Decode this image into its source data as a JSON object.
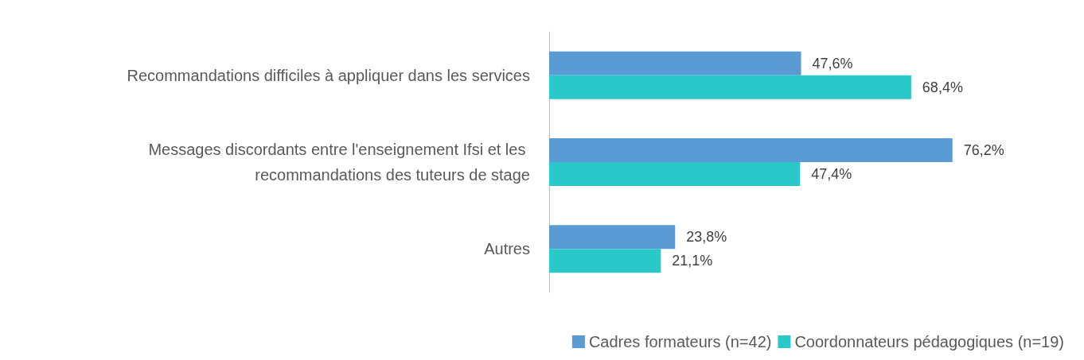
{
  "chart_data": {
    "type": "bar",
    "orientation": "horizontal",
    "categories": [
      "Recommandations difficiles à appliquer dans les services",
      "Messages discordants entre l'enseignement Ifsi et les recommandations des tuteurs de stage",
      "Autres"
    ],
    "series": [
      {
        "name": "Cadres formateurs (n=42)",
        "color": "#5b9bd5",
        "values": [
          47.6,
          76.2,
          23.8
        ],
        "value_labels": [
          "47,6%",
          "76,2%",
          "23,8%"
        ]
      },
      {
        "name": "Coordonnateurs pédagogiques (n=19)",
        "color": "#2ac8c8",
        "values": [
          68.4,
          47.4,
          21.1
        ],
        "value_labels": [
          "68,4%",
          "47,4%",
          "21,1%"
        ]
      }
    ],
    "legend": "bottom right"
  }
}
